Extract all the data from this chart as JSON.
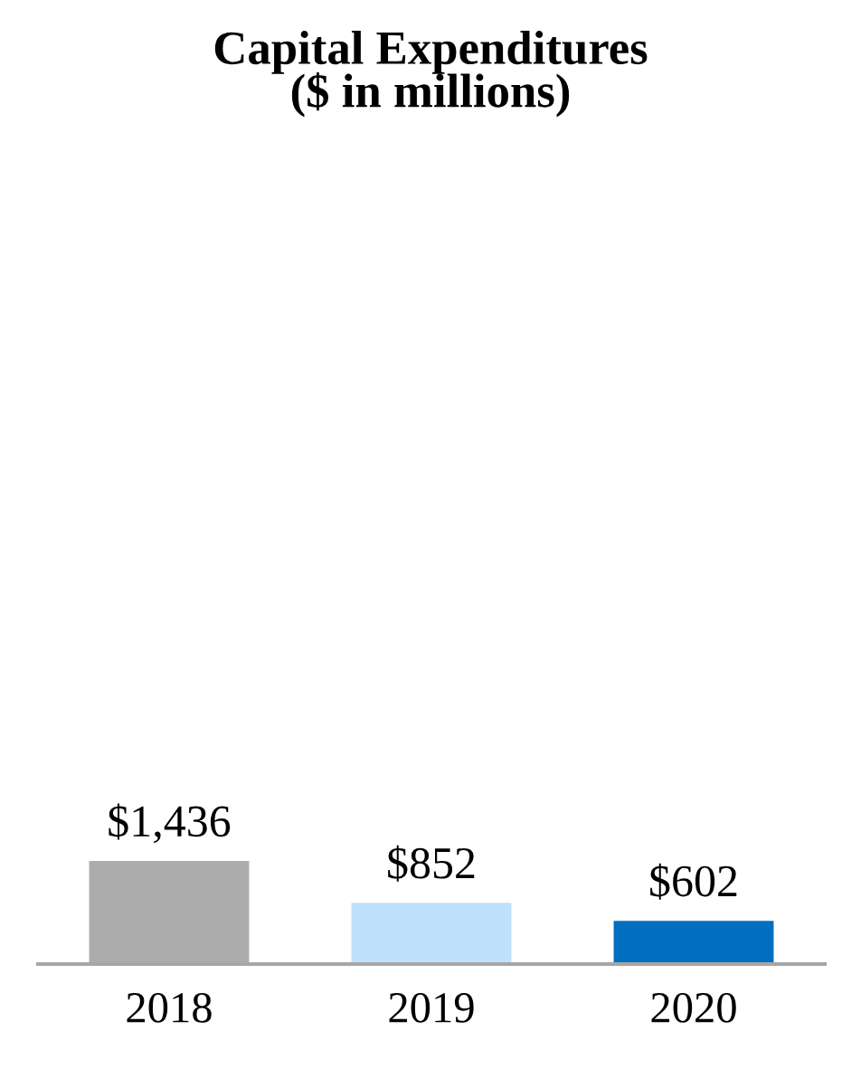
{
  "chart_data": {
    "type": "bar",
    "title": "Capital Expenditures\n($ in millions)",
    "categories": [
      "2018",
      "2019",
      "2020"
    ],
    "values": [
      1436,
      852,
      602
    ],
    "colors": [
      "#acacac",
      "#bfe1fb",
      "#006fc0"
    ],
    "value_labels": [
      "$1,436",
      "$852",
      "$602"
    ]
  }
}
